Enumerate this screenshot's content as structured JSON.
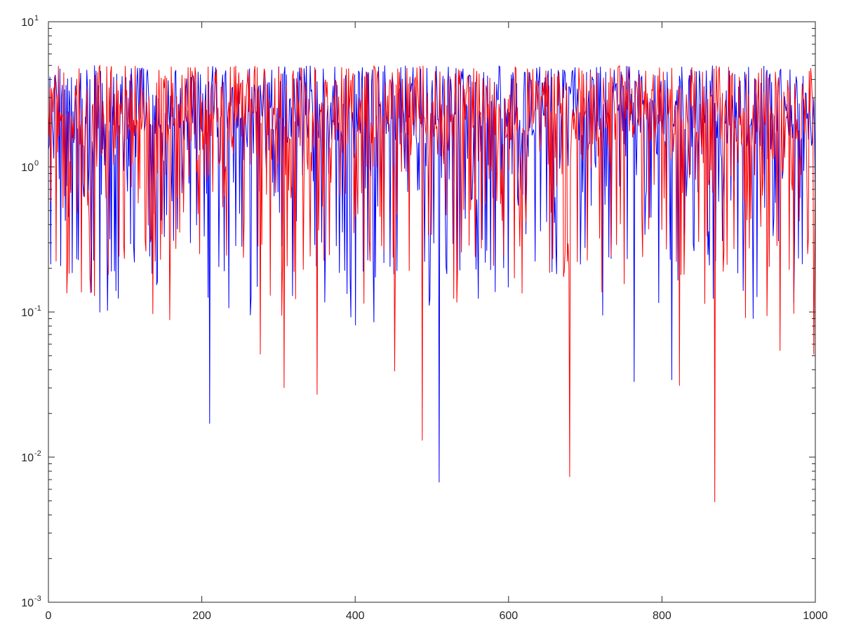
{
  "chart_data": {
    "type": "line",
    "title": "",
    "xlabel": "",
    "ylabel": "",
    "xlim": [
      0,
      1000
    ],
    "ylim": [
      0.001,
      10
    ],
    "y_scale": "log",
    "grid": false,
    "legend": "none",
    "x_ticks": [
      0,
      200,
      400,
      600,
      800,
      1000
    ],
    "x_tick_labels": [
      "0",
      "200",
      "400",
      "600",
      "800",
      "1000"
    ],
    "y_ticks": [
      {
        "value": 10,
        "base": "10",
        "exp": "1"
      },
      {
        "value": 1,
        "base": "10",
        "exp": "0"
      },
      {
        "value": 0.1,
        "base": "10",
        "exp": "-1"
      },
      {
        "value": 0.01,
        "base": "10",
        "exp": "-2"
      },
      {
        "value": 0.001,
        "base": "10",
        "exp": "-3"
      }
    ],
    "series": [
      {
        "color": "#0000ff",
        "points_per_series": 1000,
        "upper_envelope": 5,
        "typical_range": [
          0.3,
          5
        ],
        "notable_minima": [
          {
            "x": 82,
            "y": 0.19
          },
          {
            "x": 210,
            "y": 0.017
          },
          {
            "x": 394,
            "y": 0.092
          },
          {
            "x": 509,
            "y": 0.0067
          },
          {
            "x": 763,
            "y": 0.033
          },
          {
            "x": 812,
            "y": 0.034
          },
          {
            "x": 905,
            "y": 0.14
          }
        ]
      },
      {
        "color": "#ff0000",
        "points_per_series": 1000,
        "upper_envelope": 5,
        "typical_range": [
          0.3,
          5
        ],
        "notable_minima": [
          {
            "x": 136,
            "y": 0.097
          },
          {
            "x": 158,
            "y": 0.088
          },
          {
            "x": 276,
            "y": 0.051
          },
          {
            "x": 307,
            "y": 0.03
          },
          {
            "x": 350,
            "y": 0.027
          },
          {
            "x": 451,
            "y": 0.039
          },
          {
            "x": 487,
            "y": 0.013
          },
          {
            "x": 679,
            "y": 0.0073
          },
          {
            "x": 822,
            "y": 0.031
          },
          {
            "x": 868,
            "y": 0.0049
          },
          {
            "x": 953,
            "y": 0.054
          },
          {
            "x": 997,
            "y": 0.051
          }
        ]
      }
    ]
  }
}
